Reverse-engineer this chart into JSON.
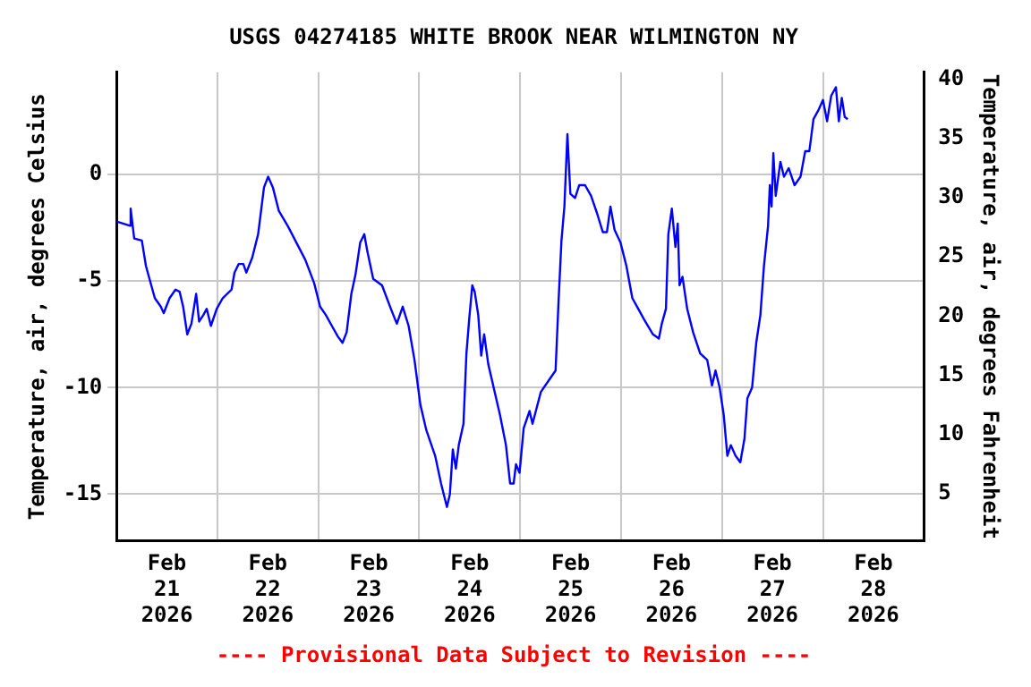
{
  "chart_data": {
    "type": "line",
    "title": "USGS 04274185 WHITE BROOK NEAR WILMINGTON NY",
    "ylabel": "Temperature, air, degrees Celsius",
    "y2label": "Temperature, air, degrees Fahrenheit",
    "annotations": [
      "---- Provisional Data Subject to Revision ----"
    ],
    "xlim": [
      "2026-02-21",
      "2026-03-01"
    ],
    "xticks": [
      {
        "value": "2026-02-21T12:00",
        "label": "Feb\n21\n2026"
      },
      {
        "value": "2026-02-22",
        "label": null
      },
      {
        "value": "2026-02-22T12:00",
        "label": "Feb\n22\n2026"
      },
      {
        "value": "2026-02-23",
        "label": null
      },
      {
        "value": "2026-02-23T12:00",
        "label": "Feb\n23\n2026"
      },
      {
        "value": "2026-02-24",
        "label": null
      },
      {
        "value": "2026-02-24T12:00",
        "label": "Feb\n24\n2026"
      },
      {
        "value": "2026-02-25",
        "label": null
      },
      {
        "value": "2026-02-25T12:00",
        "label": "Feb\n25\n2026"
      },
      {
        "value": "2026-02-26",
        "label": null
      },
      {
        "value": "2026-02-26T12:00",
        "label": "Feb\n26\n2026"
      },
      {
        "value": "2026-02-27",
        "label": null
      },
      {
        "value": "2026-02-27T12:00",
        "label": "Feb\n27\n2026"
      },
      {
        "value": "2026-02-28",
        "label": null
      },
      {
        "value": "2026-02-28T12:00",
        "label": "Feb\n28\n2026"
      }
    ],
    "ylim": [
      -17.2,
      4.8
    ],
    "yticks": [
      -15,
      -10,
      -5,
      0
    ],
    "y2lim": [
      1,
      40.6
    ],
    "y2ticks": [
      5,
      10,
      15,
      20,
      25,
      30,
      35,
      40
    ],
    "grid": true,
    "legend": false,
    "x": [
      "2026-02-21T00:00",
      "2026-02-21T03:14",
      "2026-02-21T03:22",
      "2026-02-21T04:13",
      "2026-02-21T06:02",
      "2026-02-21T07:01",
      "2026-02-21T07:43",
      "2026-02-21T09:07",
      "2026-02-21T10:32",
      "2026-02-21T11:14",
      "2026-02-21T12:38",
      "2026-02-21T14:02",
      "2026-02-21T15:01",
      "2026-02-21T15:51",
      "2026-02-21T16:50",
      "2026-02-21T17:49",
      "2026-02-21T18:57",
      "2026-02-21T19:39",
      "2026-02-21T20:38",
      "2026-02-21T21:28",
      "2026-02-21T22:27",
      "2026-02-21T23:51",
      "2026-02-22T01:16",
      "2026-02-22T03:22",
      "2026-02-22T04:04",
      "2026-02-22T05:03",
      "2026-02-22T06:10",
      "2026-02-22T06:52",
      "2026-02-22T08:17",
      "2026-02-22T09:41",
      "2026-02-22T11:05",
      "2026-02-22T12:04",
      "2026-02-22T13:11",
      "2026-02-22T14:36",
      "2026-02-22T16:42",
      "2026-02-22T18:48",
      "2026-02-22T20:54",
      "2026-02-22T23:01",
      "2026-02-23T00:25",
      "2026-02-23T01:49",
      "2026-02-23T03:13",
      "2026-02-23T04:38",
      "2026-02-23T05:45",
      "2026-02-23T06:44",
      "2026-02-23T07:51",
      "2026-02-23T08:50",
      "2026-02-23T09:57",
      "2026-02-23T10:56",
      "2026-02-23T11:39",
      "2026-02-23T13:03",
      "2026-02-23T15:09",
      "2026-02-23T17:15",
      "2026-02-23T18:40",
      "2026-02-23T20:04",
      "2026-02-23T21:28",
      "2026-02-23T22:52",
      "2026-02-24T00:16",
      "2026-02-24T01:41",
      "2026-02-24T03:47",
      "2026-02-24T05:11",
      "2026-02-24T06:35",
      "2026-02-24T07:17",
      "2026-02-24T07:59",
      "2026-02-24T08:42",
      "2026-02-24T09:24",
      "2026-02-24T10:31",
      "2026-02-24T11:13",
      "2026-02-24T11:55",
      "2026-02-24T12:37",
      "2026-02-24T13:11",
      "2026-02-24T14:02",
      "2026-02-24T14:44",
      "2026-02-24T15:26",
      "2026-02-24T16:25",
      "2026-02-24T17:49",
      "2026-02-24T19:13",
      "2026-02-24T20:37",
      "2026-02-24T21:36",
      "2026-02-24T22:27",
      "2026-02-24T23:00",
      "2026-02-24T23:51",
      "2026-02-25T00:50",
      "2026-02-25T02:14",
      "2026-02-25T02:56",
      "2026-02-25T04:55",
      "2026-02-25T07:01",
      "2026-02-25T08:25",
      "2026-02-25T09:07",
      "2026-02-25T09:49",
      "2026-02-25T10:31",
      "2026-02-25T11:14",
      "2026-02-25T11:56",
      "2026-02-25T13:03",
      "2026-02-25T14:02",
      "2026-02-25T15:26",
      "2026-02-25T16:51",
      "2026-02-25T18:15",
      "2026-02-25T19:39",
      "2026-02-25T20:38",
      "2026-02-25T21:28",
      "2026-02-25T22:27",
      "2026-02-25T23:52",
      "2026-02-26T01:16",
      "2026-02-26T02:40",
      "2026-02-26T04:04",
      "2026-02-26T05:28",
      "2026-02-26T07:35",
      "2026-02-26T08:59",
      "2026-02-26T09:41",
      "2026-02-26T10:40",
      "2026-02-26T11:14",
      "2026-02-26T12:04",
      "2026-02-26T12:55",
      "2026-02-26T13:28",
      "2026-02-26T13:54",
      "2026-02-26T14:36",
      "2026-02-26T15:43",
      "2026-02-26T17:07",
      "2026-02-26T18:48",
      "2026-02-26T20:29",
      "2026-02-26T21:37",
      "2026-02-26T22:27",
      "2026-02-26T23:26",
      "2026-02-27T00:25",
      "2026-02-27T01:16",
      "2026-02-27T02:06",
      "2026-02-27T03:13",
      "2026-02-27T04:21",
      "2026-02-27T05:20",
      "2026-02-27T06:02",
      "2026-02-27T07:09",
      "2026-02-27T08:08",
      "2026-02-27T09:07",
      "2026-02-27T09:58",
      "2026-02-27T10:57",
      "2026-02-27T11:22",
      "2026-02-27T11:47",
      "2026-02-27T12:12",
      "2026-02-27T12:46",
      "2026-02-27T13:53",
      "2026-02-27T14:44",
      "2026-02-27T15:51",
      "2026-02-27T17:15",
      "2026-02-27T18:40",
      "2026-02-27T19:47",
      "2026-02-27T20:46",
      "2026-02-27T21:45",
      "2026-02-27T22:52",
      "2026-02-28T00:00",
      "2026-02-28T00:59",
      "2026-02-28T01:58",
      "2026-02-28T03:05",
      "2026-02-28T03:47",
      "2026-02-28T04:29",
      "2026-02-28T05:11",
      "2026-02-28T05:54"
    ],
    "series": [
      {
        "color": "#0000ff",
        "values": [
          -2.2,
          -2.4,
          -1.6,
          -3.0,
          -3.1,
          -4.3,
          -4.8,
          -5.8,
          -6.2,
          -6.5,
          -5.8,
          -5.4,
          -5.5,
          -6.2,
          -7.5,
          -7.0,
          -5.6,
          -6.9,
          -6.6,
          -6.3,
          -7.1,
          -6.3,
          -5.8,
          -5.4,
          -4.6,
          -4.2,
          -4.2,
          -4.6,
          -3.9,
          -2.8,
          -0.6,
          -0.1,
          -0.6,
          -1.7,
          -2.4,
          -3.2,
          -4.0,
          -5.1,
          -6.2,
          -6.6,
          -7.1,
          -7.6,
          -7.9,
          -7.4,
          -5.6,
          -4.7,
          -3.2,
          -2.8,
          -3.6,
          -4.9,
          -5.2,
          -6.3,
          -7.0,
          -6.2,
          -7.1,
          -8.7,
          -10.8,
          -12.0,
          -13.2,
          -14.5,
          -15.6,
          -15.0,
          -12.9,
          -13.8,
          -12.7,
          -11.7,
          -8.4,
          -6.7,
          -5.2,
          -5.5,
          -6.6,
          -8.5,
          -7.5,
          -8.9,
          -10.1,
          -11.3,
          -12.7,
          -14.5,
          -14.5,
          -13.6,
          -14.0,
          -11.9,
          -11.1,
          -11.7,
          -10.2,
          -9.6,
          -9.2,
          -6.0,
          -3.1,
          -1.5,
          1.9,
          -0.9,
          -1.1,
          -0.5,
          -0.5,
          -1.0,
          -1.8,
          -2.7,
          -2.7,
          -1.5,
          -2.6,
          -3.2,
          -4.3,
          -5.8,
          -6.3,
          -6.8,
          -7.5,
          -7.7,
          -7.0,
          -6.3,
          -2.8,
          -1.6,
          -3.4,
          -2.3,
          -5.2,
          -4.8,
          -6.3,
          -7.4,
          -8.4,
          -8.7,
          -9.9,
          -9.2,
          -10.0,
          -11.3,
          -13.2,
          -12.7,
          -13.2,
          -13.5,
          -12.4,
          -10.5,
          -10.0,
          -7.9,
          -6.6,
          -4.3,
          -2.4,
          -0.5,
          -1.5,
          1.0,
          -1.0,
          0.6,
          -0.1,
          0.3,
          -0.5,
          -0.1,
          1.1,
          1.1,
          2.6,
          3.0,
          3.5,
          2.5,
          3.7,
          4.1,
          2.5,
          3.6,
          2.7,
          2.6
        ]
      }
    ]
  }
}
